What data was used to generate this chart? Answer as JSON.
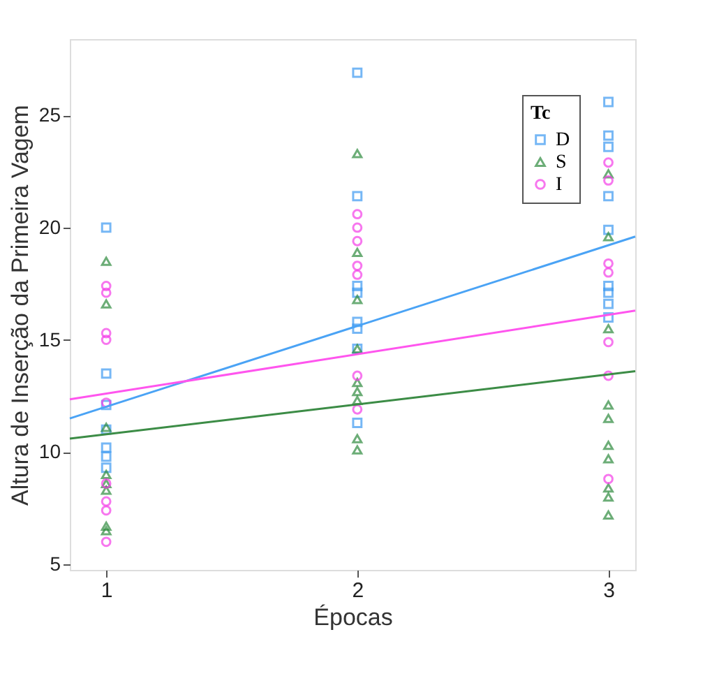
{
  "chart_data": {
    "type": "scatter",
    "xlabel": "Épocas",
    "ylabel": "Altura de Inserção da Primeira Vagem",
    "legend_title": "Tc",
    "legend": "top right",
    "grid": false,
    "xlim": [
      0.855,
      3.107
    ],
    "xticks": [
      1,
      2,
      3
    ],
    "ylim": [
      4.75,
      28.4
    ],
    "yticks": [
      5,
      10,
      15,
      20,
      25
    ],
    "series": [
      {
        "name": "D",
        "color": "#3d9af2",
        "marker": "square",
        "x": [
          1,
          1,
          1,
          1,
          1,
          1,
          1,
          2,
          2,
          2,
          2,
          2,
          2,
          2,
          2,
          3,
          3,
          3,
          3,
          3,
          3,
          3,
          3,
          3
        ],
        "values": [
          20.0,
          13.5,
          12.1,
          11.0,
          10.2,
          9.8,
          9.3,
          26.9,
          21.4,
          17.4,
          17.1,
          15.8,
          15.5,
          14.6,
          11.3,
          25.6,
          24.1,
          23.6,
          21.4,
          19.9,
          17.4,
          17.1,
          16.6,
          16.0
        ]
      },
      {
        "name": "S",
        "color": "#2e8b3e",
        "marker": "triangle",
        "x": [
          1,
          1,
          1,
          1,
          1,
          1,
          1,
          1,
          2,
          2,
          2,
          2,
          2,
          2,
          2,
          2,
          2,
          3,
          3,
          3,
          3,
          3,
          3,
          3,
          3,
          3,
          3
        ],
        "values": [
          18.5,
          16.6,
          11.1,
          9.0,
          8.6,
          8.3,
          6.7,
          6.5,
          23.3,
          18.9,
          16.8,
          14.6,
          13.1,
          12.7,
          12.3,
          10.6,
          10.1,
          22.4,
          19.6,
          15.5,
          12.1,
          11.5,
          10.3,
          9.7,
          8.4,
          8.0,
          7.2
        ]
      },
      {
        "name": "I",
        "color": "#f43ee8",
        "marker": "circle",
        "x": [
          1,
          1,
          1,
          1,
          1,
          1,
          1,
          1,
          1,
          2,
          2,
          2,
          2,
          2,
          2,
          2,
          3,
          3,
          3,
          3,
          3,
          3,
          3
        ],
        "values": [
          17.4,
          17.1,
          15.3,
          15.0,
          12.2,
          8.6,
          7.8,
          7.4,
          6.0,
          20.6,
          20.0,
          19.4,
          18.3,
          17.9,
          13.4,
          11.9,
          22.9,
          22.1,
          18.4,
          18.0,
          14.9,
          13.4,
          8.8
        ]
      },
      {
        "type": "line",
        "line_style": "solid",
        "color": "#4aa3f5",
        "x": [
          0.855,
          3.107
        ],
        "values": [
          11.5,
          19.6
        ]
      },
      {
        "type": "line",
        "line_style": "solid",
        "color": "#ff55ee",
        "x": [
          0.855,
          3.107
        ],
        "values": [
          12.35,
          16.3
        ]
      },
      {
        "type": "line",
        "line_style": "solid",
        "color": "#3c8c46",
        "x": [
          0.855,
          3.107
        ],
        "values": [
          10.6,
          13.6
        ]
      }
    ]
  }
}
